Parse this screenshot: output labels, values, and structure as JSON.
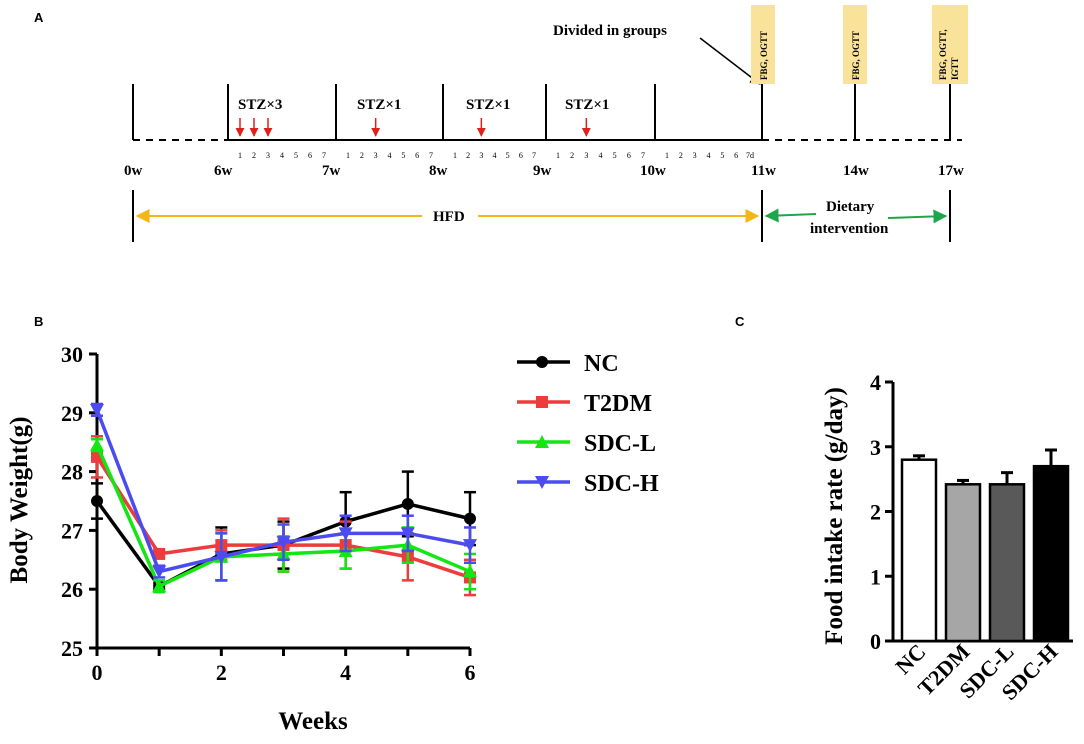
{
  "figure": {
    "panel_a_label": "A",
    "panel_b_label": "B",
    "panel_c_label": "C"
  },
  "timeline": {
    "week_labels": [
      "0w",
      "6w",
      "7w",
      "8w",
      "9w",
      "10w",
      "11w",
      "14w",
      "17w"
    ],
    "stz_labels": [
      "STZ×3",
      "STZ×1",
      "STZ×1",
      "STZ×1"
    ],
    "stz_day_arrows": [
      [
        1,
        2,
        3
      ],
      [
        3
      ],
      [
        3
      ],
      [
        3
      ]
    ],
    "day_numbers": [
      "1",
      "2",
      "3",
      "4",
      "5",
      "6",
      "7"
    ],
    "day_suffix": "d",
    "divided_label": "Divided in groups",
    "test_boxes": [
      {
        "lines": [
          "FBG, OGTT"
        ]
      },
      {
        "lines": [
          "FBG, OGTT"
        ]
      },
      {
        "lines": [
          "FBG, OGTT,",
          "IGTT"
        ]
      }
    ],
    "hfd_label": "HFD",
    "dietary_label_line1": "Dietary",
    "dietary_label_line2": "intervention",
    "colors": {
      "arrow_red": "#e0201b",
      "hfd_arrow": "#f5b617",
      "dietary_arrow": "#1fa64a",
      "test_box": "#f9e29a"
    }
  },
  "chart_data": [
    {
      "type": "line",
      "title": "",
      "xlabel": "Weeks",
      "ylabel": "Body Weight(g)",
      "x": [
        0,
        1,
        2,
        3,
        4,
        5,
        6
      ],
      "xticks": [
        0,
        2,
        4,
        6
      ],
      "yticks": [
        25,
        26,
        27,
        28,
        29,
        30
      ],
      "xlim": [
        0,
        6
      ],
      "ylim": [
        25,
        30
      ],
      "legend_position": "top-right",
      "series": [
        {
          "name": "NC",
          "color": "#000000",
          "marker": "circle",
          "values": [
            27.5,
            26.05,
            26.6,
            26.75,
            27.15,
            27.45,
            27.2
          ],
          "errors": [
            0.3,
            0.05,
            0.45,
            0.4,
            0.5,
            0.55,
            0.45
          ]
        },
        {
          "name": "T2DM",
          "color": "#ee3b3b",
          "marker": "square",
          "values": [
            28.25,
            26.6,
            26.75,
            26.75,
            26.75,
            26.55,
            26.2
          ],
          "errors": [
            0.35,
            0.05,
            0.25,
            0.45,
            0.4,
            0.4,
            0.3
          ]
        },
        {
          "name": "SDC-L",
          "color": "#13e613",
          "marker": "triangle-up",
          "values": [
            28.45,
            26.05,
            26.55,
            26.6,
            26.65,
            26.75,
            26.3
          ],
          "errors": [
            0.1,
            0.1,
            0.4,
            0.3,
            0.3,
            0.3,
            0.3
          ]
        },
        {
          "name": "SDC-H",
          "color": "#4b4bf0",
          "marker": "triangle-down",
          "values": [
            29.05,
            26.3,
            26.55,
            26.8,
            26.95,
            26.95,
            26.75
          ],
          "errors": [
            0.1,
            0.1,
            0.4,
            0.3,
            0.3,
            0.3,
            0.3
          ]
        }
      ]
    },
    {
      "type": "bar",
      "title": "",
      "xlabel": "",
      "ylabel": "Food intake rate (g/day)",
      "categories": [
        "NC",
        "T2DM",
        "SDC-L",
        "SDC-H"
      ],
      "values": [
        2.8,
        2.42,
        2.42,
        2.7
      ],
      "errors": [
        0.06,
        0.06,
        0.18,
        0.25
      ],
      "colors": [
        "#ffffff",
        "#a6a6a6",
        "#595959",
        "#000000"
      ],
      "yticks": [
        0,
        1,
        2,
        3,
        4
      ],
      "ylim": [
        0,
        4
      ]
    }
  ]
}
